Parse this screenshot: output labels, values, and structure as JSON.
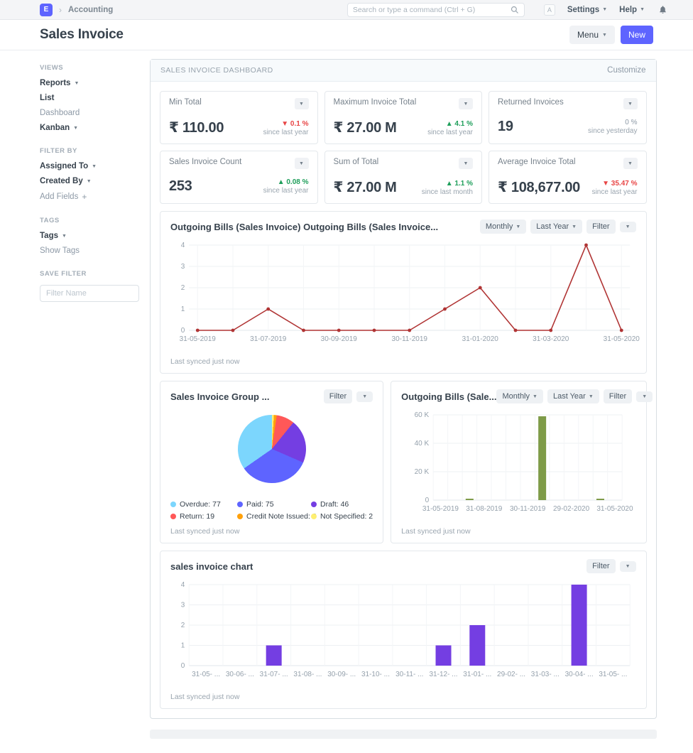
{
  "navbar": {
    "logo": "E",
    "breadcrumb": "Accounting",
    "search_placeholder": "Search or type a command (Ctrl + G)",
    "avatar": "A",
    "settings": "Settings",
    "help": "Help"
  },
  "page_head": {
    "title": "Sales Invoice",
    "menu": "Menu",
    "new": "New"
  },
  "sidebar": {
    "sections": [
      {
        "title": "VIEWS",
        "items": [
          {
            "label": "Reports",
            "caret": true
          },
          {
            "label": "List"
          },
          {
            "label": "Dashboard",
            "muted": true
          },
          {
            "label": "Kanban",
            "caret": true
          }
        ]
      },
      {
        "title": "FILTER BY",
        "items": [
          {
            "label": "Assigned To",
            "caret": true
          },
          {
            "label": "Created By",
            "caret": true
          },
          {
            "label": "Add Fields",
            "plus": true,
            "muted": true
          }
        ]
      },
      {
        "title": "TAGS",
        "items": [
          {
            "label": "Tags",
            "caret": true
          },
          {
            "label": "Show Tags",
            "muted": true
          }
        ]
      },
      {
        "title": "SAVE FILTER",
        "items": [],
        "input_placeholder": "Filter Name"
      }
    ]
  },
  "dashboard": {
    "header": "SALES INVOICE DASHBOARD",
    "customize": "Customize"
  },
  "controls": {
    "monthly": "Monthly",
    "last_year": "Last Year",
    "filter": "Filter"
  },
  "cards": [
    {
      "label": "Min Total",
      "value": "₹ 110.00",
      "change": "0.1 %",
      "dir": "down",
      "since": "since last year"
    },
    {
      "label": "Maximum Invoice Total",
      "value": "₹ 27.00 M",
      "change": "4.1 %",
      "dir": "up",
      "since": "since last year"
    },
    {
      "label": "Returned Invoices",
      "value": "19",
      "change": "0 %",
      "dir": "neutral",
      "since": "since yesterday"
    },
    {
      "label": "Sales Invoice Count",
      "value": "253",
      "change": "0.08 %",
      "dir": "up",
      "since": "since last year"
    },
    {
      "label": "Sum of Total",
      "value": "₹ 27.00 M",
      "change": "1.1 %",
      "dir": "up",
      "since": "since last month"
    },
    {
      "label": "Average Invoice Total",
      "value": "₹ 108,677.00",
      "change": "35.47 %",
      "dir": "down",
      "since": "since last year"
    }
  ],
  "chart_data": [
    {
      "id": "chart-line",
      "type": "line",
      "title": "Outgoing Bills (Sales Invoice) Outgoing Bills (Sales Invoice...",
      "color": "#b03434",
      "x": [
        "31-05-2019",
        "30-06-2019",
        "31-07-2019",
        "31-08-2019",
        "30-09-2019",
        "31-10-2019",
        "30-11-2019",
        "31-12-2019",
        "31-01-2020",
        "29-02-2020",
        "31-03-2020",
        "30-04-2020",
        "31-05-2020"
      ],
      "values": [
        0,
        0,
        1,
        0,
        0,
        0,
        0,
        1,
        2,
        0,
        0,
        4,
        0
      ],
      "ylim": [
        0,
        4
      ],
      "yticks": [
        0,
        1,
        2,
        3,
        4
      ],
      "ytick_labels": [
        "0",
        "1",
        "2",
        "3",
        "4"
      ],
      "x_label_every": 2,
      "grid": true,
      "legend_position": "none",
      "last_synced": "Last synced just now"
    },
    {
      "id": "chart-pie",
      "type": "pie",
      "title": "Sales Invoice Group ...",
      "slices": [
        {
          "label": "Overdue",
          "value": 77,
          "color": "#7cd6fd"
        },
        {
          "label": "Paid",
          "value": 75,
          "color": "#5e64ff"
        },
        {
          "label": "Draft",
          "value": 46,
          "color": "#743ee2"
        },
        {
          "label": "Return",
          "value": 19,
          "color": "#ff5858"
        },
        {
          "label": "Credit Note Issued",
          "value": 3,
          "color": "#ffa00a"
        },
        {
          "label": "Not Specified",
          "value": 2,
          "color": "#feef72"
        }
      ],
      "legend_position": "bottom",
      "last_synced": "Last synced just now"
    },
    {
      "id": "chart-bar-green",
      "type": "bar",
      "title": "Outgoing Bills (Sale...",
      "color": "#7e9b48",
      "categories": [
        "31-05-2019",
        "30-06-2019",
        "31-07-2019",
        "31-08-2019",
        "30-09-2019",
        "31-10-2019",
        "30-11-2019",
        "31-12-2019",
        "31-01-2020",
        "29-02-2020",
        "31-03-2020",
        "30-04-2020",
        "31-05-2020"
      ],
      "values": [
        0,
        0,
        600,
        0,
        0,
        0,
        0,
        59000,
        0,
        0,
        0,
        300,
        0
      ],
      "ylim": [
        0,
        60000
      ],
      "yticks": [
        0,
        20000,
        40000,
        60000
      ],
      "ytick_labels": [
        "0",
        "20 K",
        "40 K",
        "60 K"
      ],
      "x_label_every": 3,
      "grid": true,
      "legend_position": "none",
      "last_synced": "Last synced just now"
    },
    {
      "id": "chart-bar-purple",
      "type": "bar",
      "title": "sales invoice chart",
      "color": "#743ee2",
      "categories": [
        "31-05- ...",
        "30-06- ...",
        "31-07- ...",
        "31-08- ...",
        "30-09- ...",
        "31-10- ...",
        "30-11- ...",
        "31-12- ...",
        "31-01- ...",
        "29-02- ...",
        "31-03- ...",
        "30-04- ...",
        "31-05- ..."
      ],
      "values": [
        0,
        0,
        1,
        0,
        0,
        0,
        0,
        1,
        2,
        0,
        0,
        4,
        0
      ],
      "ylim": [
        0,
        4
      ],
      "yticks": [
        0,
        1,
        2,
        3,
        4
      ],
      "ytick_labels": [
        "0",
        "1",
        "2",
        "3",
        "4"
      ],
      "x_label_every": 1,
      "grid": true,
      "legend_position": "none",
      "last_synced": "Last synced just now"
    }
  ]
}
